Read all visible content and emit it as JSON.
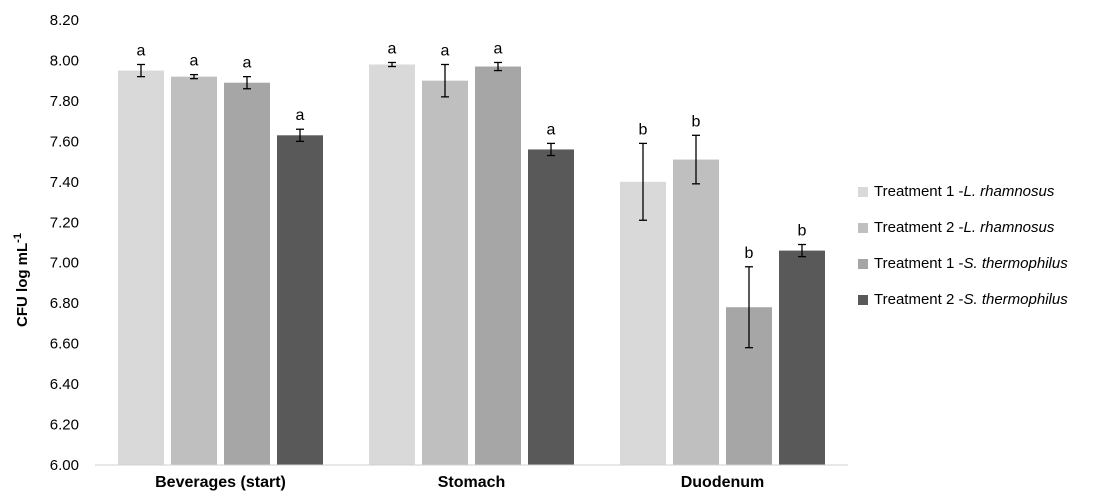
{
  "chart_data": {
    "type": "bar",
    "title": "",
    "xlabel": "",
    "ylabel": "CFU log mL",
    "ylabel_superscript": "-1",
    "ylim": [
      6.0,
      8.2
    ],
    "ytick_step": 0.2,
    "ytick_labels": [
      "6.00",
      "6.20",
      "6.40",
      "6.60",
      "6.80",
      "7.00",
      "7.20",
      "7.40",
      "7.60",
      "7.80",
      "8.00",
      "8.20"
    ],
    "categories": [
      "Beverages (start)",
      "Stomach",
      "Duodenum"
    ],
    "grid": false,
    "legend_position": "right",
    "series": [
      {
        "prefix": "Treatment 1 - ",
        "species": "L. rhamnosus",
        "color": "#d9d9d9",
        "values": [
          7.95,
          7.98,
          7.4
        ],
        "errors": [
          0.03,
          0.01,
          0.19
        ],
        "labels": [
          "a",
          "a",
          "b"
        ]
      },
      {
        "prefix": "Treatment 2 - ",
        "species": "L. rhamnosus",
        "color": "#bfbfbf",
        "values": [
          7.92,
          7.9,
          7.51
        ],
        "errors": [
          0.01,
          0.08,
          0.12
        ],
        "labels": [
          "a",
          "a",
          "b"
        ]
      },
      {
        "prefix": "Treatment 1 - ",
        "species": "S. thermophilus",
        "color": "#a6a6a6",
        "values": [
          7.89,
          7.97,
          6.78
        ],
        "errors": [
          0.03,
          0.02,
          0.2
        ],
        "labels": [
          "a",
          "a",
          "b"
        ]
      },
      {
        "prefix": "Treatment 2 - ",
        "species": "S. thermophilus",
        "color": "#595959",
        "values": [
          7.63,
          7.56,
          7.06
        ],
        "errors": [
          0.03,
          0.03,
          0.03
        ],
        "labels": [
          "a",
          "a",
          "b"
        ]
      }
    ]
  }
}
